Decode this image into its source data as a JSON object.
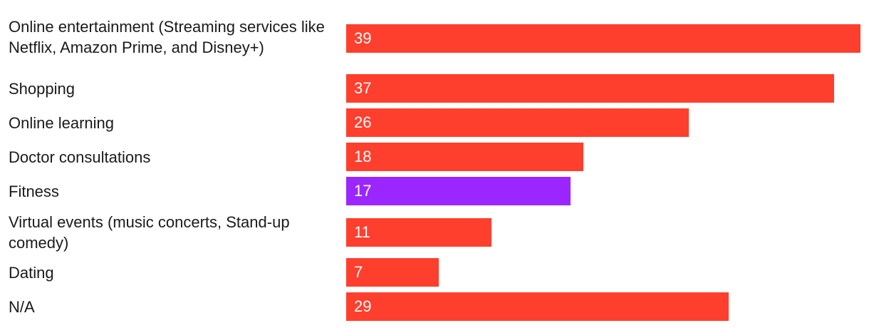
{
  "chart_data": {
    "type": "bar",
    "orientation": "horizontal",
    "categories": [
      "Online entertainment (Streaming services like Netflix, Amazon Prime, and Disney+)",
      "Shopping",
      "Online learning",
      "Doctor consultations",
      "Fitness",
      "Virtual events (music concerts, Stand-up comedy)",
      "Dating",
      "N/A"
    ],
    "values": [
      39,
      37,
      26,
      18,
      17,
      11,
      7,
      29
    ],
    "xlim": [
      0,
      39
    ],
    "grid": false,
    "legend": "none",
    "colors": {
      "default": "#ff3f2d",
      "highlight": "#9b26ff",
      "highlight_category": "Fitness",
      "value_label": "#ffffff"
    }
  }
}
